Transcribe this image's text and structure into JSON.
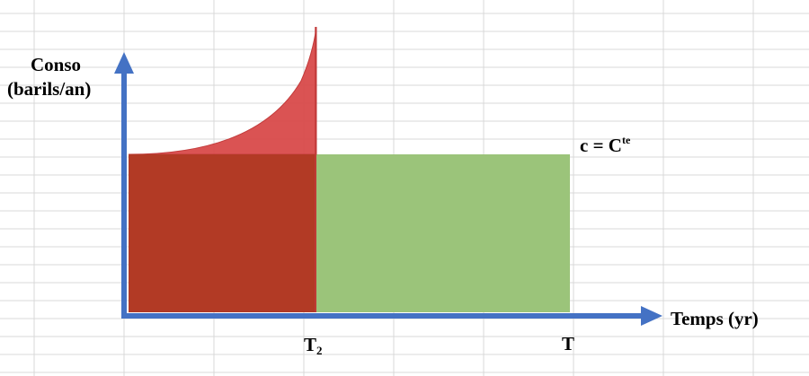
{
  "labels": {
    "y_axis_line1": "Conso",
    "y_axis_line2": "(barils/an)",
    "x_axis": "Temps (yr)",
    "t2_main": "T",
    "t2_sub": "2",
    "t_end": "T",
    "constant_main": "c = C",
    "constant_sup": "te"
  },
  "colors": {
    "axis": "#4472C4",
    "grid": "#D9D9D9",
    "red_block": "#B23A25",
    "red_curve": "#D84A4A",
    "green_block": "#9BC47A"
  }
}
